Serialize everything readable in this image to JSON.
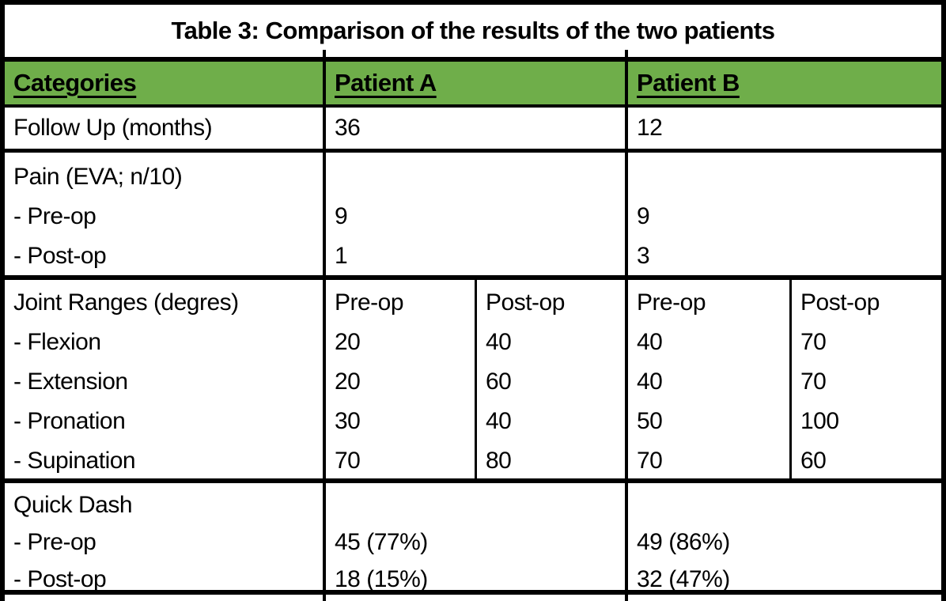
{
  "colors": {
    "header_green": "#6FAE4A",
    "border_black": "#000000",
    "text_black": "#000000",
    "background_white": "#FFFFFF"
  },
  "table": {
    "title": "Table 3: Comparison of the results of the two patients",
    "header": {
      "categories": "Categories",
      "patient_a": "Patient A",
      "patient_b": "Patient B"
    },
    "follow_up": {
      "label": "Follow Up (months)",
      "patient_a": "36",
      "patient_b": "12"
    },
    "pain": {
      "label": "Pain (EVA; n/10)",
      "sub_rows": [
        {
          "label": "- Pre-op",
          "patient_a": "9",
          "patient_b": "9"
        },
        {
          "label": "- Post-op",
          "patient_a": "1",
          "patient_b": "3"
        }
      ]
    },
    "joint_ranges": {
      "label": "Joint Ranges (degres)",
      "sub_headers": {
        "a_pre": "Pre-op",
        "a_post": "Post-op",
        "b_pre": "Pre-op",
        "b_post": "Post-op"
      },
      "sub_rows": [
        {
          "label": "- Flexion",
          "a_pre": "20",
          "a_post": "40",
          "b_pre": "40",
          "b_post": "70"
        },
        {
          "label": "- Extension",
          "a_pre": "20",
          "a_post": "60",
          "b_pre": "40",
          "b_post": "70"
        },
        {
          "label": "- Pronation",
          "a_pre": "30",
          "a_post": "40",
          "b_pre": "50",
          "b_post": "100"
        },
        {
          "label": "- Supination",
          "a_pre": "70",
          "a_post": "80",
          "b_pre": "70",
          "b_post": "60"
        }
      ]
    },
    "quick_dash": {
      "label": "Quick Dash",
      "sub_rows": [
        {
          "label": "- Pre-op",
          "patient_a": "45 (77%)",
          "patient_b": "49 (86%)"
        },
        {
          "label": "- Post-op",
          "patient_a": "18 (15%)",
          "patient_b": "32 (47%)"
        }
      ]
    }
  }
}
